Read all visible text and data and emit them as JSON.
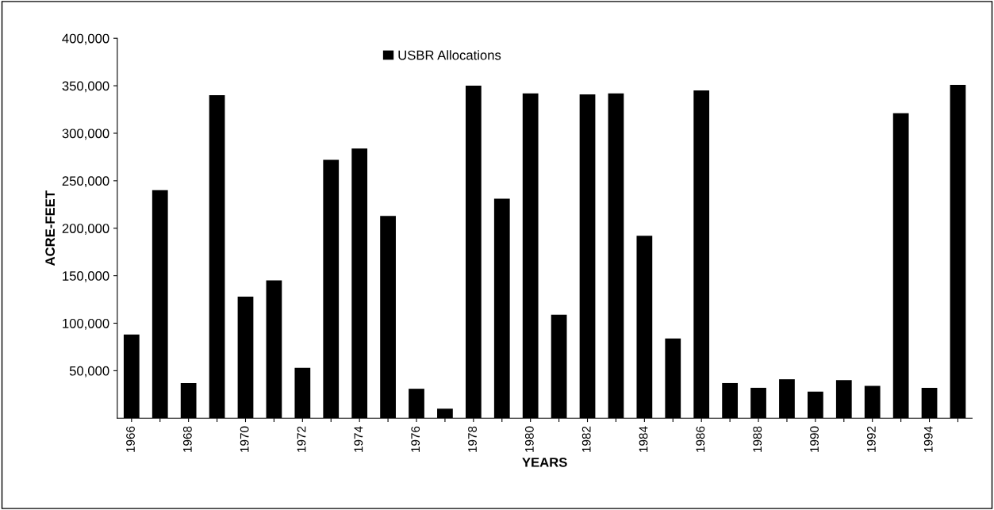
{
  "chart_data": {
    "type": "bar",
    "xlabel": "YEARS",
    "ylabel": "ACRE-FEET",
    "categories": [
      "1966",
      null,
      "1968",
      null,
      "1970",
      null,
      "1972",
      null,
      "1974",
      null,
      "1976",
      null,
      "1978",
      null,
      "1980",
      null,
      "1982",
      null,
      "1984",
      null,
      "1986",
      null,
      "1988",
      null,
      "1990",
      null,
      "1992",
      null,
      "1994",
      null
    ],
    "series": [
      {
        "name": "USBR Allocations",
        "color": "#000000",
        "values": [
          88000,
          240000,
          37000,
          340000,
          128000,
          145000,
          53000,
          272000,
          284000,
          213000,
          31000,
          10000,
          350000,
          231000,
          342000,
          109000,
          341000,
          342000,
          192000,
          84000,
          345000,
          37000,
          32000,
          41000,
          28000,
          40000,
          34000,
          321000,
          32000,
          351000
        ]
      }
    ],
    "ylim": [
      0,
      400000
    ],
    "yticks": [
      {
        "value": 50000,
        "label": "50,000"
      },
      {
        "value": 100000,
        "label": "100,000"
      },
      {
        "value": 150000,
        "label": "150,000"
      },
      {
        "value": 200000,
        "label": "200,000"
      },
      {
        "value": 250000,
        "label": "250,000"
      },
      {
        "value": 300000,
        "label": "300,000"
      },
      {
        "value": 350000,
        "label": "350,000"
      },
      {
        "value": 400000,
        "label": "400,000"
      }
    ],
    "grid": false,
    "legend": "top"
  }
}
